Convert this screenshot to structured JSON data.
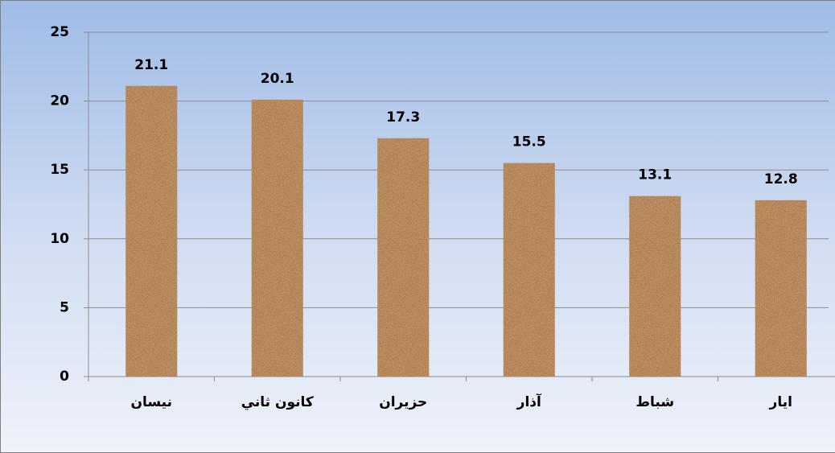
{
  "chart_data": {
    "type": "bar",
    "categories": [
      "نيسان",
      "كانون ثاني",
      "حزيران",
      "آذار",
      "شباط",
      "ايار"
    ],
    "values": [
      21.1,
      20.1,
      17.3,
      15.5,
      13.1,
      12.8
    ],
    "color": "#c4915e",
    "ylim": [
      0,
      25
    ],
    "yticks": [
      0,
      5,
      10,
      15,
      20,
      25
    ],
    "grid": true
  }
}
